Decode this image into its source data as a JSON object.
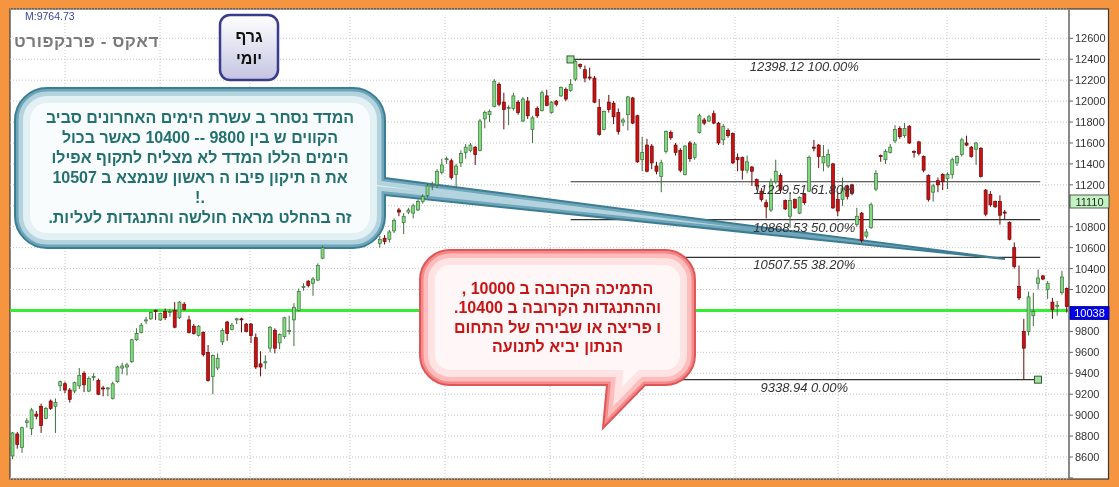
{
  "chart_data": {
    "type": "candlestick",
    "title": "דאקס - פרנקפורט",
    "subtitle": "גרף יומי",
    "annotations": [
      "M:9764.73",
      "המדד נסחר ב עשרת הימים האחרונים סביב\nהקווים ש בין 9800 -- 10400 כאשר בכול\nהימים הללו המדד לא מצליח לתקוף אפילו\nאת ה תיקון פיבו ה ראשון שנמצא ב 10507\n.!\nזה בהחלט מראה חולשה והתנגדות לעליות.",
      "התמיכה הקרובה ב 10000 ,\nוההתנגדות הקרובה ב 10400.\nו פריצה או שבירה של התחום\nהנתון יביא לתנועה",
      "11110",
      "10038"
    ],
    "categories": [
      null,
      null,
      null,
      null,
      null,
      null,
      null,
      null,
      null,
      null,
      null,
      null,
      null,
      null,
      null,
      null,
      null,
      null,
      null,
      null,
      null,
      null,
      null,
      null,
      null,
      null,
      null,
      null,
      null,
      null,
      null,
      null,
      null,
      null,
      null,
      null,
      null,
      null,
      null,
      null,
      null,
      null,
      null,
      null,
      null,
      null,
      null,
      null,
      null,
      null,
      null,
      null,
      null,
      null,
      null,
      null,
      null,
      null,
      null,
      null,
      null,
      null,
      null,
      null,
      null,
      null,
      null,
      null,
      null,
      null,
      null,
      null,
      null,
      null,
      null,
      null,
      null,
      null,
      null,
      null,
      null,
      null,
      null,
      null,
      null,
      null,
      null,
      null,
      null,
      null,
      null,
      null,
      null,
      null,
      null,
      null,
      null,
      null,
      null,
      null,
      null,
      null,
      null,
      null,
      null,
      null,
      null,
      null,
      null,
      null,
      null,
      null,
      null,
      null,
      null,
      null,
      null,
      null,
      null,
      null,
      null,
      null,
      null,
      null,
      null,
      null,
      null,
      null,
      null,
      null,
      null,
      null,
      null,
      null,
      null,
      null,
      null,
      null,
      null,
      null,
      null,
      null,
      null,
      null,
      null,
      null,
      null,
      null,
      null,
      null,
      null,
      null,
      null,
      null,
      null,
      null,
      null,
      null,
      null,
      null,
      null,
      null,
      null,
      null,
      null,
      null,
      null,
      null,
      null,
      null,
      null,
      null,
      null,
      null,
      null,
      null,
      null,
      null,
      null,
      null,
      null,
      null,
      null,
      null,
      null,
      null,
      null,
      null,
      null,
      null,
      null,
      null,
      null,
      null,
      null,
      null,
      null,
      null,
      null,
      null,
      null,
      null,
      null,
      null,
      null,
      null,
      null,
      null,
      null,
      null,
      null,
      null,
      null,
      null,
      null,
      null,
      null,
      null,
      null,
      null,
      null,
      null
    ],
    "ohlc": [
      [
        8610,
        8840,
        8580,
        8830
      ],
      [
        8820,
        8840,
        8680,
        8720
      ],
      [
        8690,
        8890,
        8640,
        8880
      ],
      [
        8930,
        8970,
        8880,
        8945
      ],
      [
        8870,
        9070,
        8810,
        9050
      ],
      [
        9010,
        9040,
        8960,
        8990
      ],
      [
        9085,
        9110,
        8830,
        8900
      ],
      [
        8970,
        9080,
        8960,
        9065
      ],
      [
        9135,
        9150,
        9050,
        9065
      ],
      [
        9085,
        9160,
        8830,
        9120
      ],
      [
        9280,
        9330,
        9230,
        9320
      ],
      [
        9300,
        9320,
        9210,
        9240
      ],
      [
        9240,
        9260,
        9120,
        9150
      ],
      [
        9230,
        9320,
        9210,
        9310
      ],
      [
        9280,
        9450,
        9250,
        9380
      ],
      [
        9400,
        9420,
        9220,
        9290
      ],
      [
        9230,
        9370,
        9220,
        9350
      ],
      [
        9360,
        9400,
        9330,
        9370
      ],
      [
        9330,
        9350,
        9190,
        9200
      ],
      [
        9260,
        9280,
        9180,
        9250
      ],
      [
        9250,
        9270,
        9180,
        9260
      ],
      [
        9160,
        9320,
        9150,
        9300
      ],
      [
        9320,
        9470,
        9310,
        9460
      ],
      [
        9450,
        9500,
        9390,
        9470
      ],
      [
        9460,
        9500,
        9380,
        9480
      ],
      [
        9510,
        9730,
        9500,
        9720
      ],
      [
        9720,
        9830,
        9710,
        9780
      ],
      [
        9790,
        9880,
        9780,
        9860
      ],
      [
        9900,
        9940,
        9870,
        9910
      ],
      [
        9920,
        9990,
        9910,
        9980
      ],
      [
        10000,
        10010,
        9910,
        9990
      ],
      [
        9910,
        9980,
        9900,
        9970
      ],
      [
        9990,
        10020,
        9910,
        9930
      ],
      [
        9980,
        10010,
        9940,
        9990
      ],
      [
        10000,
        10080,
        9830,
        9840
      ],
      [
        9930,
        10090,
        9920,
        10080
      ],
      [
        10060,
        10080,
        10000,
        10010
      ],
      [
        9910,
        9950,
        9780,
        9790
      ],
      [
        9850,
        9870,
        9770,
        9780
      ],
      [
        9760,
        9860,
        9750,
        9850
      ],
      [
        9790,
        9800,
        9560,
        9580
      ],
      [
        9600,
        9670,
        9320,
        9330
      ],
      [
        9370,
        9580,
        9200,
        9570
      ],
      [
        9450,
        9590,
        9430,
        9540
      ],
      [
        9700,
        9830,
        9670,
        9810
      ],
      [
        9890,
        9900,
        9710,
        9780
      ],
      [
        9820,
        9880,
        9810,
        9860
      ],
      [
        9910,
        9930,
        9870,
        9920
      ],
      [
        9920,
        9930,
        9790,
        9915
      ],
      [
        9870,
        9880,
        9790,
        9800
      ],
      [
        9870,
        9880,
        9690,
        9760
      ],
      [
        9740,
        9780,
        9440,
        9460
      ],
      [
        9490,
        9610,
        9370,
        9460
      ],
      [
        9500,
        9570,
        9440,
        9510
      ],
      [
        9640,
        9850,
        9600,
        9840
      ],
      [
        9810,
        9830,
        9590,
        9640
      ],
      [
        9690,
        9780,
        9630,
        9770
      ],
      [
        9750,
        9940,
        9730,
        9930
      ],
      [
        9800,
        9950,
        9770,
        9810
      ],
      [
        9910,
        10070,
        9660,
        10030
      ],
      [
        10000,
        10210,
        9990,
        10180
      ],
      [
        10220,
        10260,
        10190,
        10230
      ],
      [
        10280,
        10290,
        10220,
        10240
      ],
      [
        10260,
        10320,
        10140,
        10300
      ],
      [
        10290,
        10450,
        10280,
        10430
      ],
      [
        10500,
        10620,
        10490,
        10600
      ],
      null,
      null,
      null,
      null,
      null,
      null,
      null,
      null,
      null,
      null,
      null,
      [
        10640,
        10710,
        10600,
        10680
      ],
      [
        10690,
        10720,
        10630,
        10660
      ],
      [
        10680,
        10770,
        10650,
        10750
      ],
      [
        10760,
        10880,
        10740,
        10860
      ],
      [
        10960,
        10980,
        10900,
        10940
      ],
      [
        10840,
        10930,
        10730,
        10900
      ],
      [
        10940,
        10980,
        10920,
        10960
      ],
      [
        10930,
        11020,
        10880,
        11000
      ],
      [
        10960,
        11060,
        10950,
        11040
      ],
      [
        11040,
        11110,
        11020,
        11090
      ],
      [
        11100,
        11210,
        11080,
        11190
      ],
      [
        11190,
        11230,
        11150,
        11200
      ],
      [
        11200,
        11350,
        11170,
        11330
      ],
      [
        11320,
        11450,
        11300,
        11390
      ],
      [
        11440,
        11470,
        11400,
        11450
      ],
      [
        11430,
        11450,
        11250,
        11270
      ],
      [
        11300,
        11400,
        11170,
        11380
      ],
      [
        11410,
        11530,
        11370,
        11500
      ],
      [
        11510,
        11590,
        11450,
        11560
      ],
      [
        11530,
        11600,
        11510,
        11580
      ],
      [
        11560,
        11570,
        11390,
        11490
      ],
      [
        11530,
        11830,
        11520,
        11810
      ],
      [
        11830,
        11910,
        11740,
        11890
      ],
      [
        11870,
        11920,
        11800,
        11900
      ],
      [
        11950,
        12210,
        11940,
        12190
      ],
      [
        12160,
        12180,
        11950,
        11970
      ],
      [
        11990,
        12080,
        11730,
        11920
      ],
      [
        11930,
        11960,
        11770,
        11940
      ],
      [
        11930,
        12080,
        11910,
        12050
      ],
      [
        11990,
        12010,
        11870,
        11890
      ],
      [
        11810,
        12040,
        11800,
        12020
      ],
      [
        12000,
        12040,
        11830,
        11860
      ],
      [
        11730,
        11860,
        11600,
        11840
      ],
      [
        11930,
        11950,
        11840,
        11860
      ],
      [
        11910,
        12100,
        11900,
        12080
      ],
      [
        12050,
        12110,
        11950,
        11960
      ],
      [
        11890,
        12000,
        11880,
        11990
      ],
      [
        12000,
        12010,
        11950,
        11970
      ],
      [
        12050,
        12140,
        12040,
        12130
      ],
      [
        12110,
        12130,
        12000,
        12020
      ],
      [
        12100,
        12210,
        12090,
        12160
      ],
      [
        12210,
        12398.12,
        12190,
        12380
      ],
      [
        12350,
        12360,
        12310,
        12330
      ],
      [
        12300,
        12340,
        12180,
        12220
      ],
      [
        12230,
        12320,
        12200,
        12220
      ],
      [
        12220,
        12240,
        11980,
        11990
      ],
      [
        11940,
        12020,
        11670,
        11680
      ],
      [
        11730,
        11910,
        11720,
        11900
      ],
      [
        11990,
        12060,
        11890,
        11920
      ],
      [
        11980,
        12000,
        11780,
        11850
      ],
      [
        11890,
        11930,
        11680,
        11710
      ],
      [
        11800,
        11840,
        11760,
        11820
      ],
      [
        11870,
        12050,
        11720,
        12040
      ],
      [
        12030,
        12040,
        11780,
        11790
      ],
      [
        11860,
        11870,
        11410,
        11420
      ],
      [
        11440,
        11660,
        11330,
        11510
      ],
      [
        11580,
        11640,
        11320,
        11330
      ],
      [
        11570,
        11590,
        11350,
        11410
      ],
      [
        11380,
        11420,
        11300,
        11330
      ],
      [
        11280,
        11440,
        11130,
        11410
      ],
      [
        11520,
        11720,
        11500,
        11710
      ],
      [
        11700,
        11720,
        11630,
        11650
      ],
      [
        11580,
        11600,
        11480,
        11510
      ],
      [
        11530,
        11550,
        11320,
        11340
      ],
      [
        11300,
        11580,
        11290,
        11570
      ],
      [
        11600,
        11620,
        11420,
        11450
      ],
      [
        11460,
        11610,
        11440,
        11590
      ],
      [
        11700,
        11880,
        11690,
        11860
      ],
      [
        11820,
        11840,
        11770,
        11790
      ],
      [
        11810,
        11870,
        11800,
        11850
      ],
      [
        11880,
        11910,
        11780,
        11790
      ],
      [
        11790,
        11800,
        11580,
        11600
      ],
      [
        11630,
        11780,
        11580,
        11760
      ],
      [
        11720,
        11740,
        11650,
        11670
      ],
      [
        11690,
        11700,
        11400,
        11410
      ],
      [
        11460,
        11500,
        11330,
        11440
      ],
      [
        11460,
        11470,
        11250,
        11340
      ],
      [
        11340,
        11480,
        11310,
        11420
      ],
      [
        11370,
        11380,
        11190,
        11330
      ],
      [
        11250,
        11260,
        11150,
        11190
      ],
      [
        11140,
        11170,
        11040,
        11060
      ],
      [
        11030,
        11060,
        10880,
        10990
      ],
      [
        10960,
        11260,
        10940,
        11230
      ],
      [
        11230,
        11440,
        11210,
        11330
      ],
      [
        11290,
        11310,
        11120,
        11150
      ],
      [
        11050,
        11060,
        10960,
        10970
      ],
      [
        10900,
        11130,
        10790,
        11050
      ],
      [
        11060,
        11070,
        10970,
        10980
      ],
      [
        10930,
        11090,
        10920,
        11080
      ],
      [
        11110,
        11120,
        11010,
        11030
      ],
      [
        11140,
        11480,
        11130,
        11460
      ],
      [
        11560,
        11630,
        11520,
        11550
      ],
      [
        11580,
        11590,
        11360,
        11470
      ],
      [
        11410,
        11580,
        11330,
        11470
      ],
      [
        11380,
        11540,
        11360,
        11490
      ],
      [
        11400,
        11410,
        10970,
        10980
      ],
      [
        11060,
        11120,
        10900,
        10950
      ],
      [
        11060,
        11270,
        11000,
        11170
      ],
      [
        11190,
        11200,
        11060,
        11090
      ],
      [
        11200,
        11210,
        11100,
        11120
      ],
      [
        10820,
        10980,
        10800,
        10900
      ],
      [
        10930,
        10940,
        10650,
        10670
      ],
      [
        10710,
        10780,
        10690,
        10750
      ],
      [
        10790,
        11030,
        10780,
        11010
      ],
      [
        11160,
        11340,
        11140,
        11310
      ],
      [
        11480,
        11490,
        11420,
        11470
      ],
      [
        11440,
        11540,
        11400,
        11520
      ],
      [
        11510,
        11590,
        11500,
        11560
      ],
      [
        11620,
        11770,
        11600,
        11730
      ],
      [
        11740,
        11760,
        11640,
        11660
      ],
      [
        11670,
        11790,
        11650,
        11740
      ],
      [
        11760,
        11770,
        11590,
        11600
      ],
      [
        11520,
        11530,
        11460,
        11510
      ],
      [
        11610,
        11620,
        11480,
        11500
      ],
      [
        11470,
        11480,
        11320,
        11340
      ],
      [
        11290,
        11300,
        11040,
        11060
      ],
      [
        11130,
        11210,
        11040,
        11190
      ],
      [
        11240,
        11270,
        11130,
        11200
      ],
      [
        11300,
        11310,
        11150,
        11230
      ],
      [
        11260,
        11320,
        11160,
        11300
      ],
      [
        11300,
        11460,
        11260,
        11440
      ],
      [
        11410,
        11480,
        11380,
        11470
      ],
      [
        11490,
        11650,
        11470,
        11630
      ],
      [
        11600,
        11670,
        11570,
        11580
      ],
      [
        11560,
        11570,
        11460,
        11470
      ],
      [
        11540,
        11610,
        11390,
        11600
      ],
      [
        11550,
        11560,
        11270,
        11280
      ],
      [
        11150,
        11160,
        10900,
        10920
      ],
      [
        11110,
        11140,
        10990,
        11010
      ],
      [
        11040,
        11050,
        10980,
        10990
      ],
      [
        11040,
        11100,
        10820,
        10910
      ],
      [
        10940,
        10960,
        10870,
        10930
      ],
      [
        10840,
        10850,
        10670,
        10680
      ],
      [
        10600,
        10650,
        10400,
        10420
      ],
      [
        10230,
        10430,
        10100,
        10120
      ],
      [
        9800,
        9920,
        9338.94,
        9640
      ],
      [
        9800,
        10180,
        9760,
        10130
      ],
      [
        9950,
        10170,
        9850,
        9990
      ],
      [
        10260,
        10390,
        10200,
        10310
      ],
      [
        10330,
        10340,
        10290,
        10300
      ],
      [
        10200,
        10280,
        10110,
        10260
      ],
      [
        10080,
        10120,
        9920,
        10010
      ],
      [
        10040,
        10090,
        9950,
        10050
      ],
      [
        10170,
        10380,
        10150,
        10320
      ],
      [
        10210,
        10220,
        9980,
        10038
      ]
    ],
    "colors": [
      "#7ddc7d",
      "#d01010",
      "#7ddc7d",
      "#7ddc7d",
      "#7ddc7d",
      "#d01010",
      "#d01010",
      "#7ddc7d",
      "#d01010",
      "#7ddc7d",
      "#7ddc7d",
      "#d01010",
      "#d01010",
      "#7ddc7d",
      "#7ddc7d",
      "#d01010",
      "#7ddc7d",
      "#7ddc7d",
      "#d01010",
      "#d01010",
      "#7ddc7d",
      "#7ddc7d",
      "#7ddc7d",
      "#7ddc7d",
      "#7ddc7d",
      "#7ddc7d",
      "#7ddc7d",
      "#7ddc7d",
      "#7ddc7d",
      "#7ddc7d",
      "#d01010",
      "#7ddc7d",
      "#d01010",
      "#7ddc7d",
      "#d01010",
      "#7ddc7d",
      "#d01010",
      "#d01010",
      "#d01010",
      "#7ddc7d",
      "#d01010",
      "#d01010",
      "#7ddc7d",
      "#7ddc7d",
      "#7ddc7d",
      "#d01010",
      "#7ddc7d",
      "#7ddc7d",
      "#d01010",
      "#d01010",
      "#d01010",
      "#d01010",
      "#d01010",
      "#7ddc7d",
      "#7ddc7d",
      "#d01010",
      "#7ddc7d",
      "#7ddc7d",
      "#7ddc7d",
      "#7ddc7d",
      "#7ddc7d",
      "#7ddc7d",
      "#d01010",
      "#7ddc7d",
      "#7ddc7d",
      "#7ddc7d",
      null,
      null,
      null,
      null,
      null,
      null,
      null,
      null,
      null,
      null,
      null,
      "#7ddc7d",
      "#d01010",
      "#7ddc7d",
      "#7ddc7d",
      "#d01010",
      "#7ddc7d",
      "#7ddc7d",
      "#7ddc7d",
      "#7ddc7d",
      "#7ddc7d",
      "#7ddc7d",
      "#7ddc7d",
      "#7ddc7d",
      "#7ddc7d",
      "#7ddc7d",
      "#d01010",
      "#7ddc7d",
      "#7ddc7d",
      "#7ddc7d",
      "#7ddc7d",
      "#d01010",
      "#7ddc7d",
      "#7ddc7d",
      "#7ddc7d",
      "#7ddc7d",
      "#d01010",
      "#d01010",
      "#7ddc7d",
      "#7ddc7d",
      "#d01010",
      "#7ddc7d",
      "#d01010",
      "#7ddc7d",
      "#d01010",
      "#7ddc7d",
      "#d01010",
      "#7ddc7d",
      "#d01010",
      "#7ddc7d",
      "#d01010",
      "#7ddc7d",
      "#7ddc7d",
      "#d01010",
      "#d01010",
      "#d01010",
      "#d01010",
      "#d01010",
      "#7ddc7d",
      "#d01010",
      "#d01010",
      "#d01010",
      "#7ddc7d",
      "#7ddc7d",
      "#d01010",
      "#d01010",
      "#7ddc7d",
      "#d01010",
      "#d01010",
      "#d01010",
      "#7ddc7d",
      "#7ddc7d",
      "#d01010",
      "#d01010",
      "#d01010",
      "#7ddc7d",
      "#d01010",
      "#7ddc7d",
      "#7ddc7d",
      "#d01010",
      "#7ddc7d",
      "#d01010",
      "#d01010",
      "#7ddc7d",
      "#d01010",
      "#d01010",
      "#d01010",
      "#d01010",
      "#7ddc7d",
      "#d01010",
      "#d01010",
      "#d01010",
      "#d01010",
      "#7ddc7d",
      "#7ddc7d",
      "#d01010",
      "#d01010",
      "#7ddc7d",
      "#d01010",
      "#7ddc7d",
      "#d01010",
      "#7ddc7d",
      "#d01010",
      "#d01010",
      "#7ddc7d",
      "#7ddc7d",
      "#d01010",
      "#d01010",
      "#7ddc7d",
      "#d01010",
      "#d01010",
      "#7ddc7d",
      "#d01010",
      "#7ddc7d",
      "#7ddc7d",
      "#7ddc7d",
      "#d01010",
      "#7ddc7d",
      "#7ddc7d",
      "#7ddc7d",
      "#d01010",
      "#7ddc7d",
      "#d01010",
      "#d01010",
      "#d01010",
      "#d01010",
      "#d01010",
      "#7ddc7d",
      "#d01010",
      "#d01010",
      "#7ddc7d",
      "#7ddc7d",
      "#7ddc7d",
      "#7ddc7d",
      "#d01010",
      "#d01010",
      "#7ddc7d",
      "#d01010",
      "#d01010",
      "#d01010",
      "#d01010",
      "#d01010",
      "#d01010",
      "#d01010",
      "#d01010",
      "#d01010",
      "#d01010",
      "#7ddc7d",
      "#7ddc7d",
      "#7ddc7d",
      "#d01010",
      "#7ddc7d",
      "#d01010",
      "#7ddc7d",
      "#7ddc7d",
      "#d01010"
    ],
    "ylim": [
      8390,
      12880
    ],
    "yticks": [
      {
        "value": 8400,
        "label": null
      },
      8600,
      8800,
      9000,
      9200,
      9400,
      9600,
      9800,
      {
        "value": 10000,
        "label": null
      },
      10200,
      10400,
      10600,
      10800,
      {
        "value": 11000,
        "label": null
      },
      11200,
      11400,
      11600,
      11800,
      12000,
      12200,
      12400,
      12600
    ],
    "ref_lines": [
      {
        "axis": "y",
        "value": 10000,
        "color": "#33ee33"
      },
      {
        "axis": "y",
        "value": 12398.12,
        "label": "12398.12 100.00%",
        "color": "#333333"
      },
      {
        "axis": "y",
        "value": 11229.51,
        "label": "11229.51 61.80%",
        "color": "#333333"
      },
      {
        "axis": "y",
        "value": 10868.53,
        "label": "10868.53 50.00%",
        "color": "#333333"
      },
      {
        "axis": "y",
        "value": 10507.55,
        "label": "10507.55 38.20%",
        "color": "#333333"
      },
      {
        "axis": "y",
        "value": 9338.94,
        "label": "9338.94 0.00%",
        "color": "#333333"
      }
    ],
    "grid": true,
    "tick_labels": "y"
  }
}
